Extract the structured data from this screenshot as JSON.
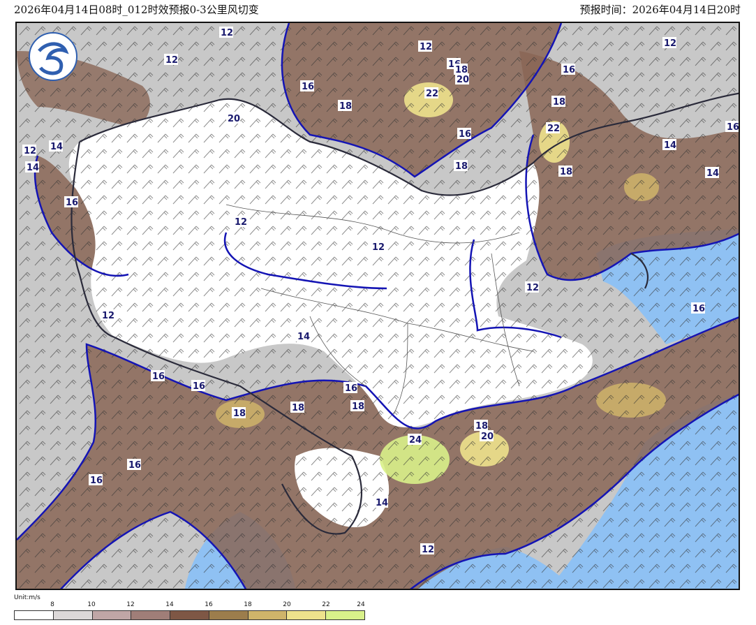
{
  "header": {
    "left_title": "2026年04月14日08时_012时效预报0-3公里风切变",
    "right_title": "预报时间：2026年04月14日20时"
  },
  "legend": {
    "unit": "Unit:m/s",
    "ticks": [
      "8",
      "10",
      "12",
      "14",
      "16",
      "18",
      "20",
      "22",
      "24"
    ],
    "colors": [
      "#ffffff",
      "#dcd8d8",
      "#c0a6a6",
      "#a07e78",
      "#7e5745",
      "#9c7d4c",
      "#cfb46a",
      "#eee28c",
      "#d9f18a"
    ]
  },
  "map": {
    "logo": "cma-logo",
    "colors": {
      "sea": "#8fc1f3",
      "land_gray": "#c8c8c8",
      "low_shear": "#ffffff",
      "contour_blue": "#1414b4",
      "border_dark": "#2a2a3a",
      "contour_cyan": "#5fd2d6"
    },
    "contour_labels": [
      "12",
      "12",
      "12",
      "16",
      "18",
      "12",
      "16",
      "20",
      "22",
      "16",
      "18",
      "16",
      "18",
      "20",
      "22",
      "18",
      "12",
      "14",
      "14",
      "14",
      "16",
      "12",
      "12",
      "14",
      "16",
      "18",
      "16",
      "12",
      "12",
      "14",
      "16",
      "16",
      "18",
      "18",
      "16",
      "18",
      "24",
      "18",
      "20",
      "16",
      "16",
      "14",
      "12"
    ]
  }
}
